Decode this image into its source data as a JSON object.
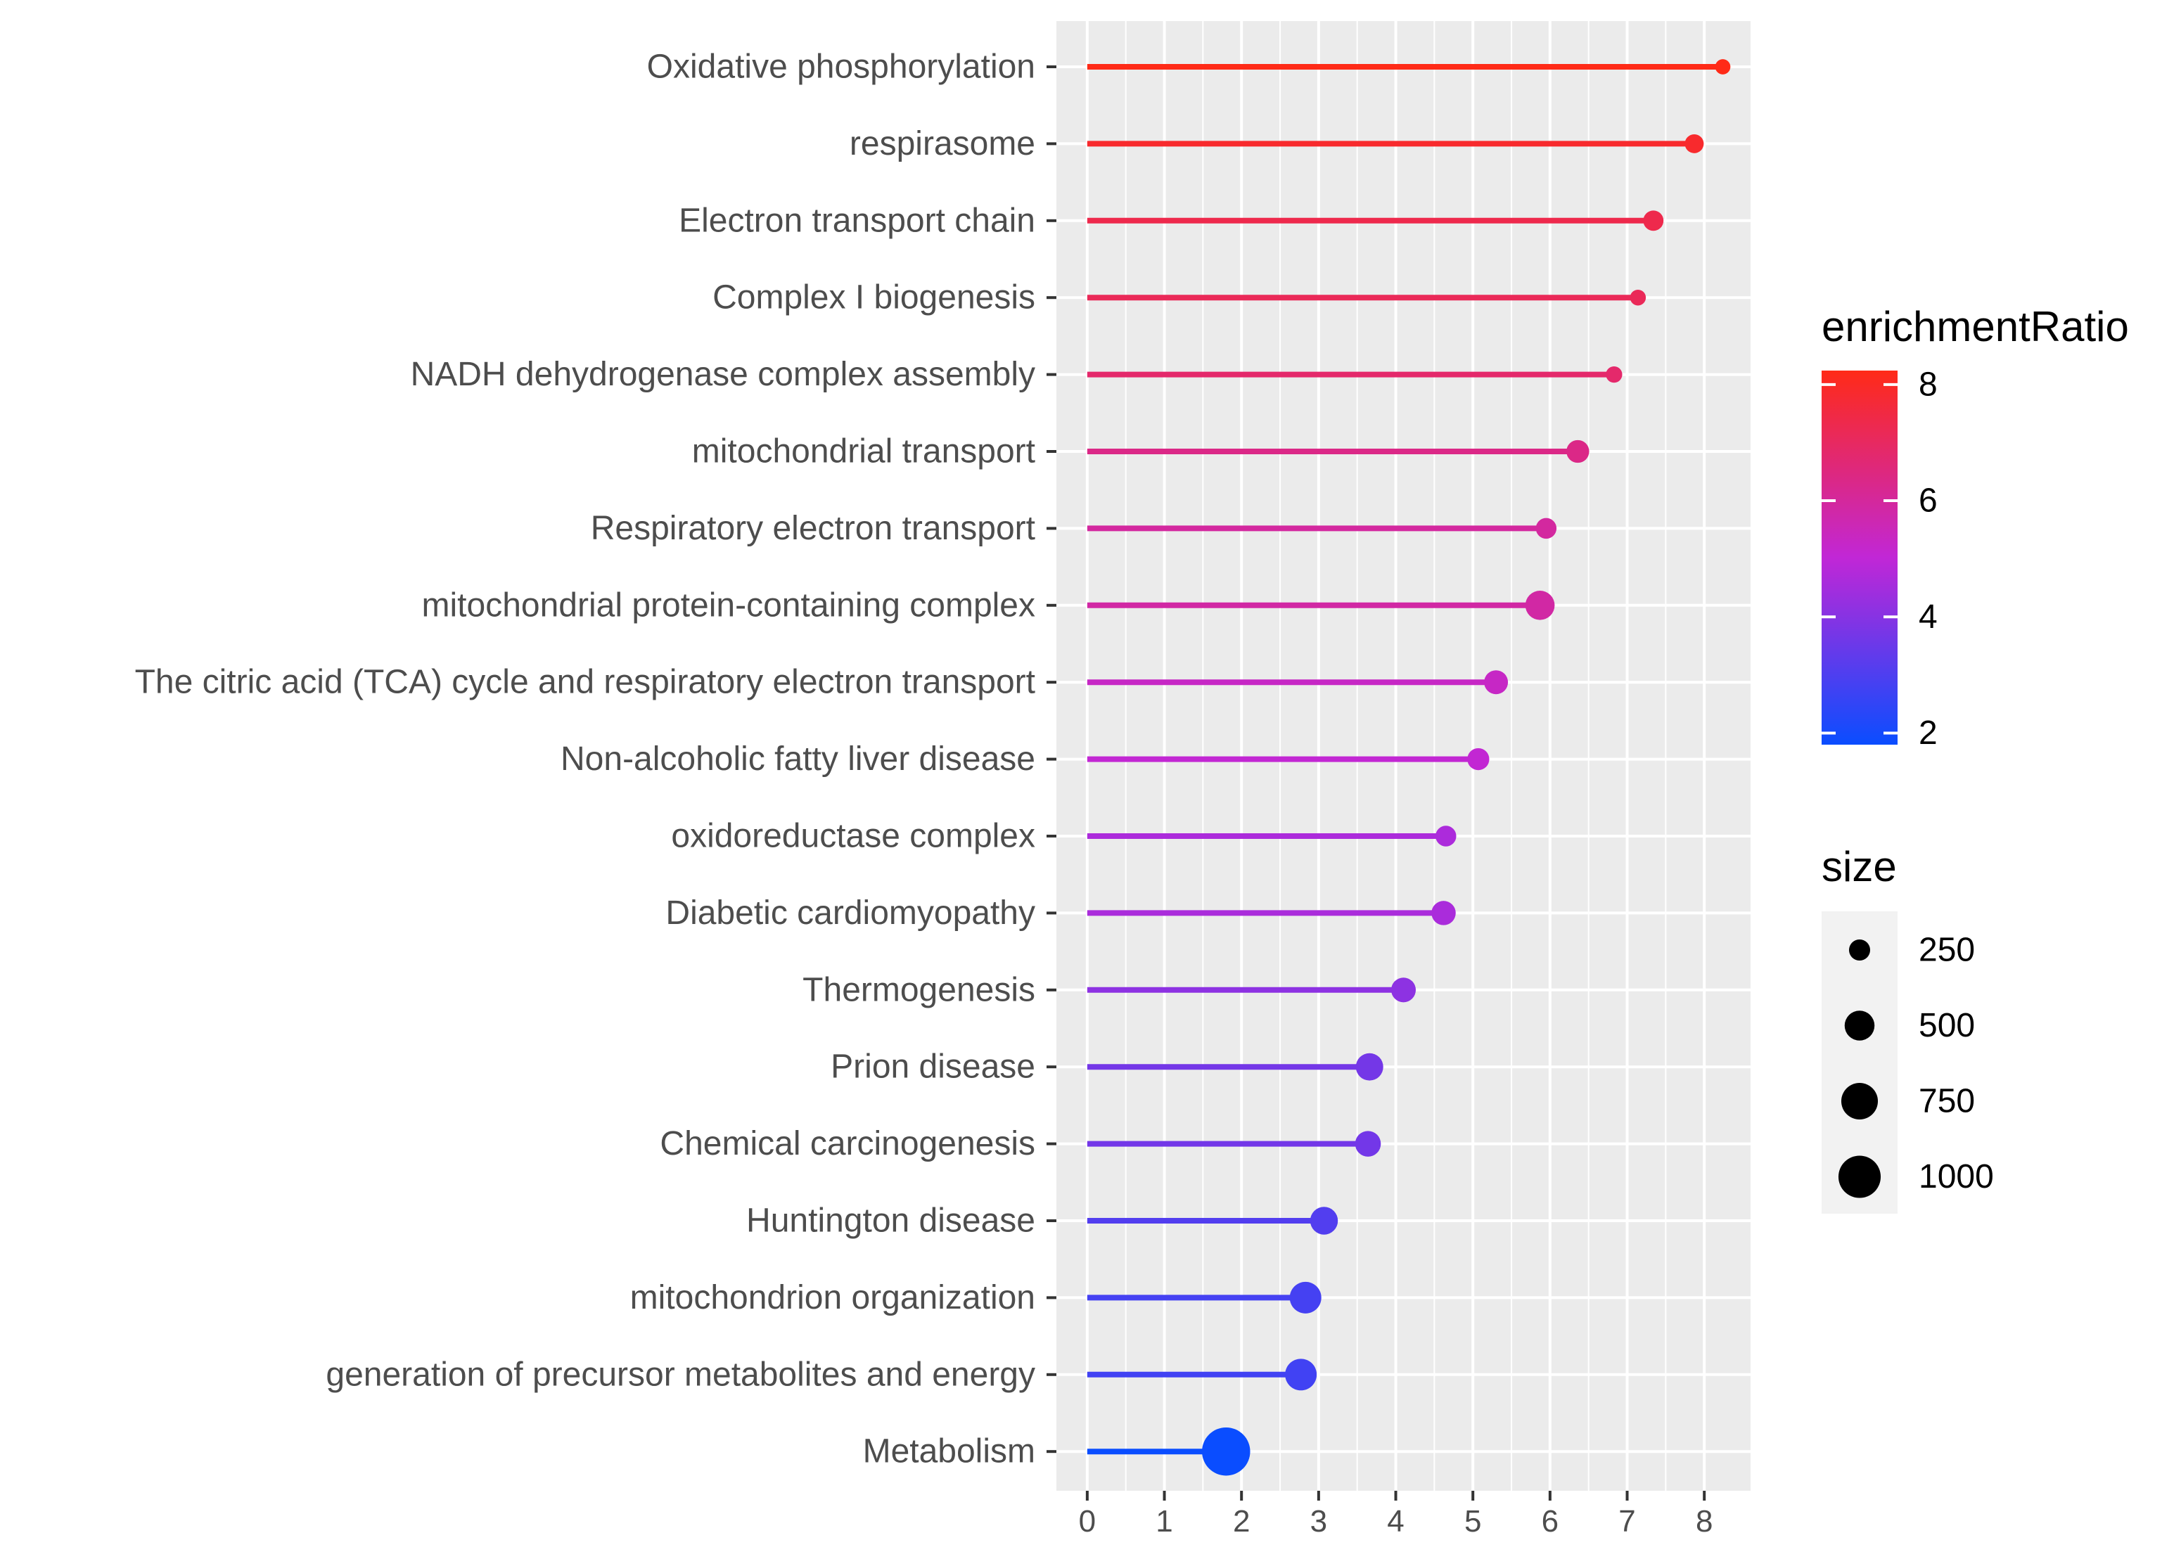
{
  "chart_data": {
    "type": "lollipop",
    "title": "",
    "xlabel": "",
    "ylabel": "",
    "xlim": [
      -0.4,
      8.6
    ],
    "x_ticks": [
      0,
      1,
      2,
      3,
      4,
      5,
      6,
      7,
      8
    ],
    "grid": true,
    "categories": [
      "Oxidative phosphorylation",
      "respirasome",
      "Electron transport chain",
      "Complex I biogenesis",
      "NADH dehydrogenase complex assembly",
      "mitochondrial transport",
      "Respiratory electron transport",
      "mitochondrial protein-containing complex",
      "The citric acid (TCA) cycle and respiratory electron transport",
      "Non-alcoholic fatty liver disease",
      "oxidoreductase complex",
      "Diabetic cardiomyopathy",
      "Thermogenesis",
      "Prion disease",
      "Chemical carcinogenesis",
      "Huntington disease",
      "mitochondrion organization",
      "generation of precursor metabolites and energy",
      "Metabolism"
    ],
    "values": [
      8.24,
      7.87,
      7.34,
      7.14,
      6.83,
      6.36,
      5.95,
      5.87,
      5.3,
      5.07,
      4.65,
      4.62,
      4.1,
      3.66,
      3.64,
      3.07,
      2.83,
      2.77,
      1.8
    ],
    "sizes": [
      130,
      200,
      230,
      140,
      150,
      290,
      240,
      480,
      320,
      270,
      240,
      330,
      340,
      420,
      370,
      430,
      560,
      560,
      1300
    ],
    "color_encoding": {
      "name": "enrichmentRatio",
      "min": 1.8,
      "max": 8.24,
      "low_color": "#0a4dff",
      "mid_color": "#c127d6",
      "high_color": "#ff2a17",
      "ticks": [
        2,
        4,
        6,
        8
      ]
    },
    "size_legend": {
      "title": "size",
      "entries": [
        250,
        500,
        750,
        1000
      ]
    },
    "legend_position": "right"
  }
}
